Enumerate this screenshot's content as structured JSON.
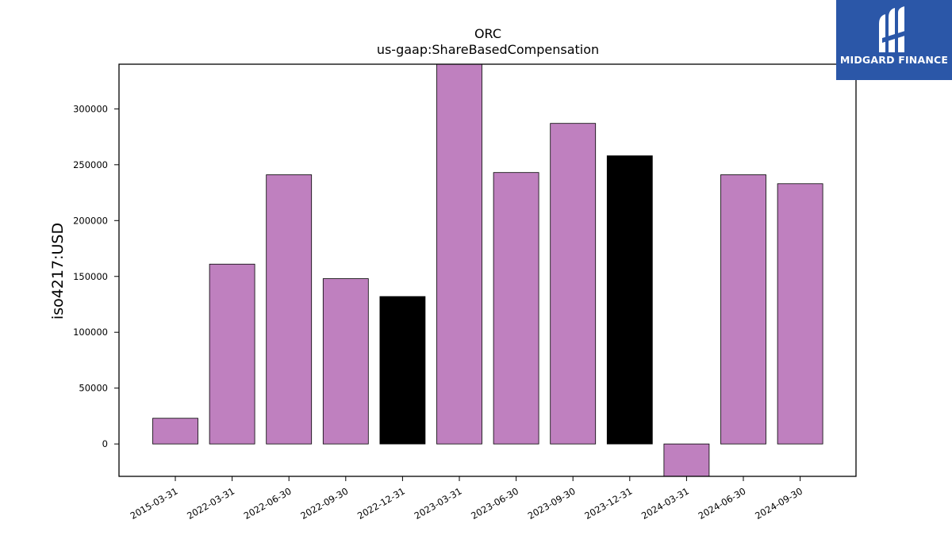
{
  "logo": {
    "text": "MIDGARD FINANCE",
    "background": "#2b57a8"
  },
  "chart_data": {
    "type": "bar",
    "title": "ORC",
    "subtitle": "us-gaap:ShareBasedCompensation",
    "ylabel": "iso4217:USD",
    "xlabel": "",
    "ylim": [
      -29000,
      340000
    ],
    "yticks": [
      0,
      50000,
      100000,
      150000,
      200000,
      250000,
      300000
    ],
    "categories": [
      "2015-03-31",
      "2022-03-31",
      "2022-06-30",
      "2022-09-30",
      "2022-12-31",
      "2023-03-31",
      "2023-06-30",
      "2023-09-30",
      "2023-12-31",
      "2024-03-31",
      "2024-06-30",
      "2024-09-30"
    ],
    "values": [
      23000,
      161000,
      241000,
      148000,
      132000,
      340000,
      243000,
      287000,
      258000,
      -29000,
      241000,
      233000
    ],
    "colors": [
      "#bf80bf",
      "#bf80bf",
      "#bf80bf",
      "#bf80bf",
      "#000000",
      "#bf80bf",
      "#bf80bf",
      "#bf80bf",
      "#000000",
      "#bf80bf",
      "#bf80bf",
      "#bf80bf"
    ],
    "grid": false,
    "legend": "none"
  }
}
